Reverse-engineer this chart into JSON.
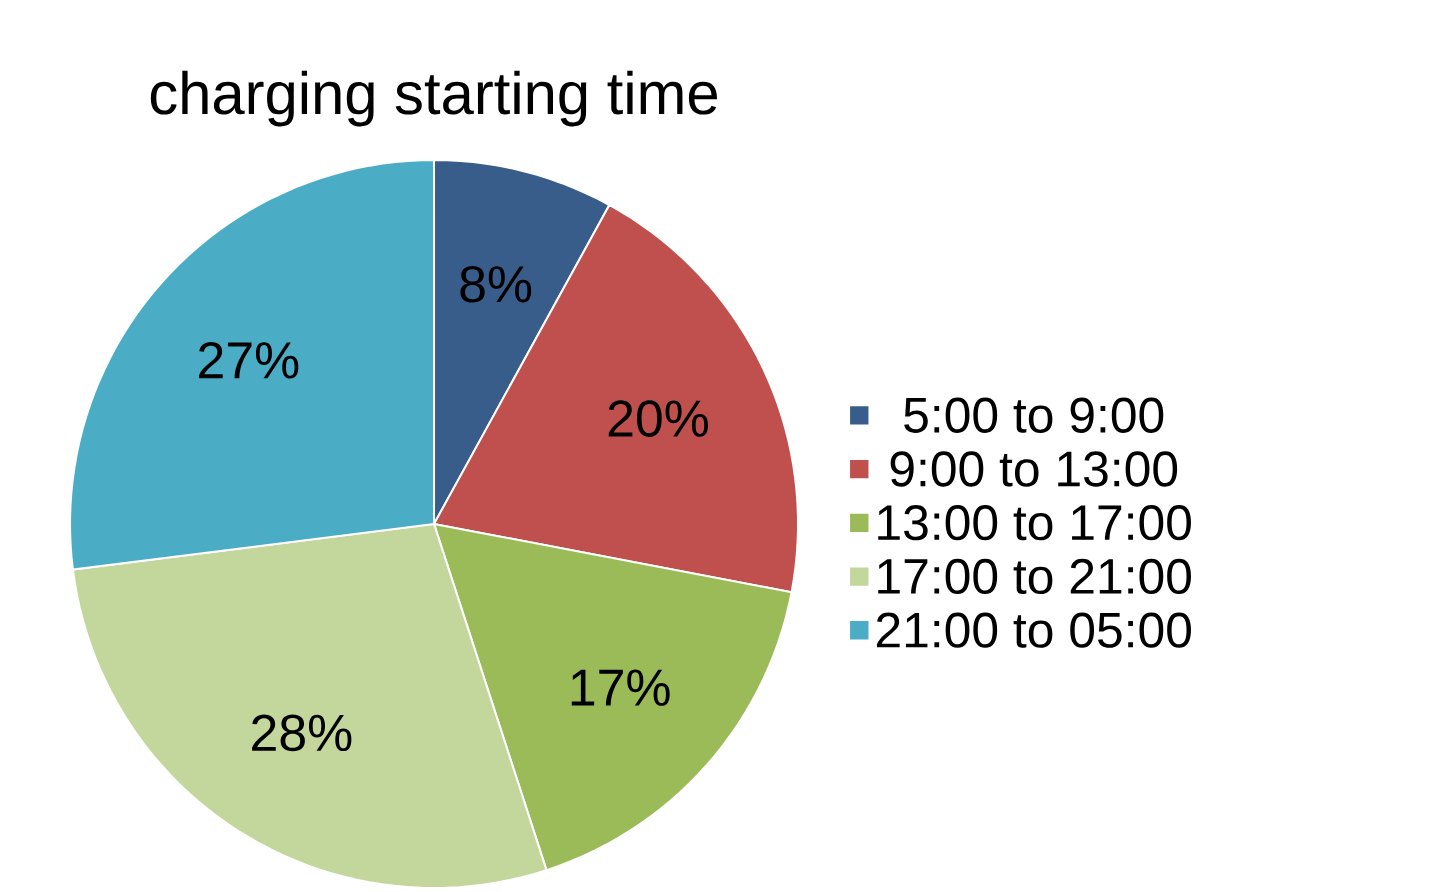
{
  "chart_data": {
    "type": "pie",
    "title": "charging starting time",
    "categories": [
      "5:00 to 9:00",
      "9:00 to 13:00",
      "13:00 to 17:00",
      "17:00 to 21:00",
      "21:00 to 05:00"
    ],
    "values": [
      8,
      20,
      17,
      28,
      27
    ],
    "value_labels": [
      "8%",
      "20%",
      "17%",
      "28%",
      "27%"
    ],
    "colors": [
      "#385d8a",
      "#c0504d",
      "#9bbb59",
      "#c3d69b",
      "#4bacc6"
    ],
    "legend": "right"
  }
}
